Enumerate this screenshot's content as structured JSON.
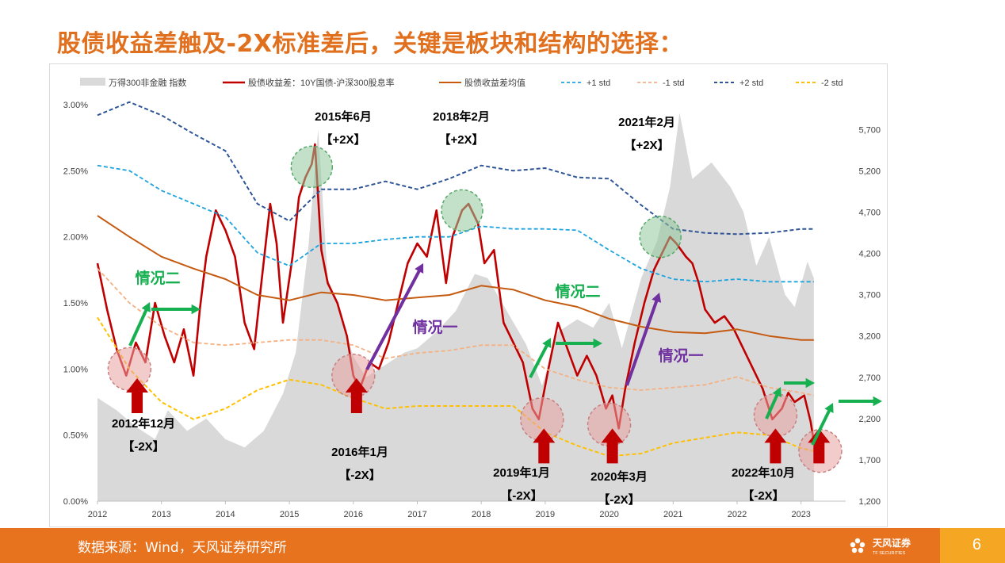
{
  "title": "股债收益差触及-2X标准差后，关键是板块和结构的选择：",
  "footer": {
    "source": "数据来源：Wind，天风证券研究所",
    "logo_text": "天风证券",
    "logo_subtext": "TF SECURITIES",
    "page_number": "6"
  },
  "colors": {
    "title": "#E0701E",
    "footer_bar": "#E8731E",
    "index_area": "#D9D9D9",
    "spread": "#C00000",
    "mean": "#C55A11",
    "plus1": "#1CA3E0",
    "minus1": "#F4B183",
    "plus2": "#2F5597",
    "minus2": "#FFC000",
    "green_arrow": "#16B050",
    "purple_arrow": "#7030A0",
    "red_arrow": "#C00000"
  },
  "chart_data": {
    "type": "line",
    "x_ticks": [
      "2012",
      "2013",
      "2014",
      "2015",
      "2016",
      "2017",
      "2018",
      "2019",
      "2020",
      "2021",
      "2022",
      "2023"
    ],
    "y_left": {
      "ticks": [
        "0.00%",
        "0.50%",
        "1.00%",
        "1.50%",
        "2.00%",
        "2.50%",
        "3.00%"
      ],
      "range": [
        0,
        3.0
      ]
    },
    "y_right": {
      "ticks": [
        "1,200",
        "1,700",
        "2,200",
        "2,700",
        "3,200",
        "3,700",
        "4,200",
        "4,700",
        "5,200",
        "5,700"
      ],
      "range": [
        1200,
        6000
      ]
    },
    "legend": [
      "万得300非金融 指数",
      "股债收益差：10Y国债-沪深300股息率",
      "股债收益差均值",
      "+1 std",
      "-1 std",
      "+2 std",
      "-2 std"
    ],
    "series": [
      {
        "name": "万得300非金融 指数",
        "axis": "right",
        "kind": "area",
        "points": [
          [
            2012.0,
            2450
          ],
          [
            2012.3,
            2300
          ],
          [
            2012.6,
            2100
          ],
          [
            2012.9,
            1950
          ],
          [
            2013.1,
            2300
          ],
          [
            2013.4,
            2050
          ],
          [
            2013.7,
            2200
          ],
          [
            2014.0,
            1950
          ],
          [
            2014.3,
            1850
          ],
          [
            2014.6,
            2050
          ],
          [
            2014.9,
            2500
          ],
          [
            2015.1,
            3000
          ],
          [
            2015.3,
            4300
          ],
          [
            2015.45,
            5700
          ],
          [
            2015.6,
            3900
          ],
          [
            2015.8,
            3450
          ],
          [
            2016.0,
            2950
          ],
          [
            2016.2,
            2700
          ],
          [
            2016.5,
            2850
          ],
          [
            2016.8,
            3000
          ],
          [
            2017.0,
            3050
          ],
          [
            2017.3,
            3250
          ],
          [
            2017.6,
            3500
          ],
          [
            2017.9,
            3950
          ],
          [
            2018.1,
            3900
          ],
          [
            2018.4,
            3500
          ],
          [
            2018.7,
            3100
          ],
          [
            2018.95,
            2600
          ],
          [
            2019.2,
            3250
          ],
          [
            2019.5,
            3400
          ],
          [
            2019.75,
            3300
          ],
          [
            2020.0,
            3600
          ],
          [
            2020.2,
            3050
          ],
          [
            2020.5,
            3900
          ],
          [
            2020.75,
            4350
          ],
          [
            2020.95,
            5000
          ],
          [
            2021.1,
            5900
          ],
          [
            2021.3,
            5100
          ],
          [
            2021.6,
            5300
          ],
          [
            2021.9,
            5000
          ],
          [
            2022.1,
            4700
          ],
          [
            2022.3,
            4050
          ],
          [
            2022.5,
            4400
          ],
          [
            2022.75,
            3700
          ],
          [
            2022.9,
            3550
          ],
          [
            2023.1,
            4100
          ],
          [
            2023.2,
            3900
          ]
        ]
      },
      {
        "name": "股债收益差：10Y国债-沪深300股息率",
        "axis": "left",
        "kind": "line",
        "points": [
          [
            2012.0,
            1.8
          ],
          [
            2012.15,
            1.45
          ],
          [
            2012.3,
            1.15
          ],
          [
            2012.45,
            0.95
          ],
          [
            2012.6,
            1.2
          ],
          [
            2012.75,
            1.05
          ],
          [
            2012.9,
            1.5
          ],
          [
            2013.05,
            1.25
          ],
          [
            2013.2,
            1.05
          ],
          [
            2013.35,
            1.3
          ],
          [
            2013.5,
            0.95
          ],
          [
            2013.6,
            1.45
          ],
          [
            2013.7,
            1.85
          ],
          [
            2013.85,
            2.2
          ],
          [
            2014.0,
            2.05
          ],
          [
            2014.15,
            1.85
          ],
          [
            2014.3,
            1.35
          ],
          [
            2014.45,
            1.15
          ],
          [
            2014.55,
            1.6
          ],
          [
            2014.7,
            2.25
          ],
          [
            2014.8,
            1.95
          ],
          [
            2014.9,
            1.35
          ],
          [
            2015.05,
            1.85
          ],
          [
            2015.15,
            2.3
          ],
          [
            2015.25,
            2.45
          ],
          [
            2015.35,
            2.55
          ],
          [
            2015.4,
            2.7
          ],
          [
            2015.5,
            1.9
          ],
          [
            2015.6,
            1.65
          ],
          [
            2015.75,
            1.5
          ],
          [
            2015.9,
            1.25
          ],
          [
            2016.0,
            0.95
          ],
          [
            2016.1,
            0.85
          ],
          [
            2016.25,
            1.05
          ],
          [
            2016.4,
            1.0
          ],
          [
            2016.55,
            1.2
          ],
          [
            2016.7,
            1.5
          ],
          [
            2016.85,
            1.8
          ],
          [
            2017.0,
            1.95
          ],
          [
            2017.15,
            1.85
          ],
          [
            2017.3,
            2.2
          ],
          [
            2017.45,
            1.65
          ],
          [
            2017.55,
            2.0
          ],
          [
            2017.7,
            2.2
          ],
          [
            2017.8,
            2.25
          ],
          [
            2017.95,
            2.1
          ],
          [
            2018.05,
            1.8
          ],
          [
            2018.2,
            1.9
          ],
          [
            2018.35,
            1.35
          ],
          [
            2018.5,
            1.2
          ],
          [
            2018.65,
            1.05
          ],
          [
            2018.8,
            0.7
          ],
          [
            2018.9,
            0.62
          ],
          [
            2019.05,
            1.0
          ],
          [
            2019.2,
            1.35
          ],
          [
            2019.35,
            1.15
          ],
          [
            2019.5,
            0.95
          ],
          [
            2019.65,
            1.1
          ],
          [
            2019.8,
            0.95
          ],
          [
            2019.95,
            0.7
          ],
          [
            2020.05,
            0.8
          ],
          [
            2020.15,
            0.55
          ],
          [
            2020.25,
            0.85
          ],
          [
            2020.4,
            1.2
          ],
          [
            2020.55,
            1.5
          ],
          [
            2020.7,
            1.75
          ],
          [
            2020.85,
            1.9
          ],
          [
            2020.95,
            2.0
          ],
          [
            2021.05,
            1.95
          ],
          [
            2021.2,
            1.85
          ],
          [
            2021.3,
            1.8
          ],
          [
            2021.4,
            1.65
          ],
          [
            2021.5,
            1.45
          ],
          [
            2021.65,
            1.35
          ],
          [
            2021.8,
            1.4
          ],
          [
            2021.95,
            1.3
          ],
          [
            2022.1,
            1.15
          ],
          [
            2022.25,
            1.0
          ],
          [
            2022.4,
            0.85
          ],
          [
            2022.55,
            0.62
          ],
          [
            2022.7,
            0.7
          ],
          [
            2022.8,
            0.82
          ],
          [
            2022.9,
            0.75
          ],
          [
            2023.05,
            0.8
          ],
          [
            2023.15,
            0.6
          ],
          [
            2023.2,
            0.45
          ]
        ]
      },
      {
        "name": "股债收益差均值",
        "axis": "left",
        "kind": "line",
        "points": [
          [
            2012.0,
            2.16
          ],
          [
            2012.5,
            2.0
          ],
          [
            2013.0,
            1.85
          ],
          [
            2013.5,
            1.76
          ],
          [
            2014.0,
            1.68
          ],
          [
            2014.5,
            1.56
          ],
          [
            2015.0,
            1.52
          ],
          [
            2015.5,
            1.58
          ],
          [
            2016.0,
            1.56
          ],
          [
            2016.5,
            1.52
          ],
          [
            2017.0,
            1.54
          ],
          [
            2017.5,
            1.56
          ],
          [
            2018.0,
            1.63
          ],
          [
            2018.5,
            1.6
          ],
          [
            2019.0,
            1.52
          ],
          [
            2019.5,
            1.47
          ],
          [
            2020.0,
            1.38
          ],
          [
            2020.5,
            1.32
          ],
          [
            2021.0,
            1.28
          ],
          [
            2021.5,
            1.27
          ],
          [
            2022.0,
            1.3
          ],
          [
            2022.5,
            1.25
          ],
          [
            2023.0,
            1.22
          ],
          [
            2023.2,
            1.22
          ]
        ]
      },
      {
        "name": "+1 std",
        "axis": "left",
        "kind": "line",
        "points": [
          [
            2012.0,
            2.54
          ],
          [
            2012.5,
            2.5
          ],
          [
            2013.0,
            2.35
          ],
          [
            2013.5,
            2.25
          ],
          [
            2014.0,
            2.15
          ],
          [
            2014.5,
            1.88
          ],
          [
            2015.0,
            1.78
          ],
          [
            2015.5,
            1.95
          ],
          [
            2016.0,
            1.95
          ],
          [
            2016.5,
            1.98
          ],
          [
            2017.0,
            2.0
          ],
          [
            2017.5,
            2.0
          ],
          [
            2018.0,
            2.08
          ],
          [
            2018.5,
            2.06
          ],
          [
            2019.0,
            2.06
          ],
          [
            2019.5,
            2.05
          ],
          [
            2020.0,
            1.9
          ],
          [
            2020.5,
            1.76
          ],
          [
            2021.0,
            1.68
          ],
          [
            2021.5,
            1.66
          ],
          [
            2022.0,
            1.68
          ],
          [
            2022.5,
            1.66
          ],
          [
            2023.0,
            1.66
          ],
          [
            2023.2,
            1.66
          ]
        ]
      },
      {
        "name": "-1 std",
        "axis": "left",
        "kind": "line",
        "points": [
          [
            2012.0,
            1.76
          ],
          [
            2012.5,
            1.5
          ],
          [
            2013.0,
            1.32
          ],
          [
            2013.5,
            1.2
          ],
          [
            2014.0,
            1.18
          ],
          [
            2014.5,
            1.2
          ],
          [
            2015.0,
            1.22
          ],
          [
            2015.5,
            1.22
          ],
          [
            2016.0,
            1.18
          ],
          [
            2016.5,
            1.08
          ],
          [
            2017.0,
            1.12
          ],
          [
            2017.5,
            1.14
          ],
          [
            2018.0,
            1.18
          ],
          [
            2018.5,
            1.18
          ],
          [
            2019.0,
            1.0
          ],
          [
            2019.5,
            0.92
          ],
          [
            2020.0,
            0.86
          ],
          [
            2020.5,
            0.84
          ],
          [
            2021.0,
            0.86
          ],
          [
            2021.5,
            0.88
          ],
          [
            2022.0,
            0.94
          ],
          [
            2022.5,
            0.86
          ],
          [
            2023.0,
            0.82
          ],
          [
            2023.2,
            0.8
          ]
        ]
      },
      {
        "name": "+2 std",
        "axis": "left",
        "kind": "line",
        "points": [
          [
            2012.0,
            2.92
          ],
          [
            2012.5,
            3.02
          ],
          [
            2013.0,
            2.92
          ],
          [
            2013.5,
            2.78
          ],
          [
            2014.0,
            2.65
          ],
          [
            2014.5,
            2.25
          ],
          [
            2015.0,
            2.12
          ],
          [
            2015.5,
            2.36
          ],
          [
            2016.0,
            2.36
          ],
          [
            2016.5,
            2.42
          ],
          [
            2017.0,
            2.36
          ],
          [
            2017.5,
            2.44
          ],
          [
            2018.0,
            2.54
          ],
          [
            2018.5,
            2.5
          ],
          [
            2019.0,
            2.52
          ],
          [
            2019.5,
            2.45
          ],
          [
            2020.0,
            2.44
          ],
          [
            2020.5,
            2.24
          ],
          [
            2021.0,
            2.06
          ],
          [
            2021.5,
            2.03
          ],
          [
            2022.0,
            2.02
          ],
          [
            2022.5,
            2.03
          ],
          [
            2023.0,
            2.06
          ],
          [
            2023.2,
            2.06
          ]
        ]
      },
      {
        "name": "-2 std",
        "axis": "left",
        "kind": "line",
        "points": [
          [
            2012.0,
            1.39
          ],
          [
            2012.5,
            1.0
          ],
          [
            2013.0,
            0.75
          ],
          [
            2013.5,
            0.62
          ],
          [
            2014.0,
            0.7
          ],
          [
            2014.5,
            0.84
          ],
          [
            2015.0,
            0.92
          ],
          [
            2015.5,
            0.88
          ],
          [
            2016.0,
            0.78
          ],
          [
            2016.5,
            0.7
          ],
          [
            2017.0,
            0.72
          ],
          [
            2017.5,
            0.72
          ],
          [
            2018.0,
            0.72
          ],
          [
            2018.5,
            0.72
          ],
          [
            2019.0,
            0.52
          ],
          [
            2019.5,
            0.42
          ],
          [
            2020.0,
            0.34
          ],
          [
            2020.5,
            0.36
          ],
          [
            2021.0,
            0.44
          ],
          [
            2021.5,
            0.48
          ],
          [
            2022.0,
            0.52
          ],
          [
            2022.5,
            0.5
          ],
          [
            2023.0,
            0.4
          ],
          [
            2023.2,
            0.38
          ]
        ]
      }
    ],
    "annotations": {
      "labels": [
        {
          "line1": "2015年6月",
          "line2": "【+2X】"
        },
        {
          "line1": "2018年2月",
          "line2": "【+2X】"
        },
        {
          "line1": "2021年2月",
          "line2": "【+2X】"
        },
        {
          "line1": "2012年12月",
          "line2": "【-2X】"
        },
        {
          "line1": "2016年1月",
          "line2": "【-2X】"
        },
        {
          "line1": "2019年1月",
          "line2": "【-2X】"
        },
        {
          "line1": "2020年3月",
          "line2": "【-2X】"
        },
        {
          "line1": "2022年10月",
          "line2": "【-2X】"
        }
      ],
      "scenarios": [
        {
          "text": "情况二",
          "color": "green"
        },
        {
          "text": "情况一",
          "color": "purple"
        },
        {
          "text": "情况二",
          "color": "green"
        },
        {
          "text": "情况一",
          "color": "purple"
        }
      ]
    }
  }
}
